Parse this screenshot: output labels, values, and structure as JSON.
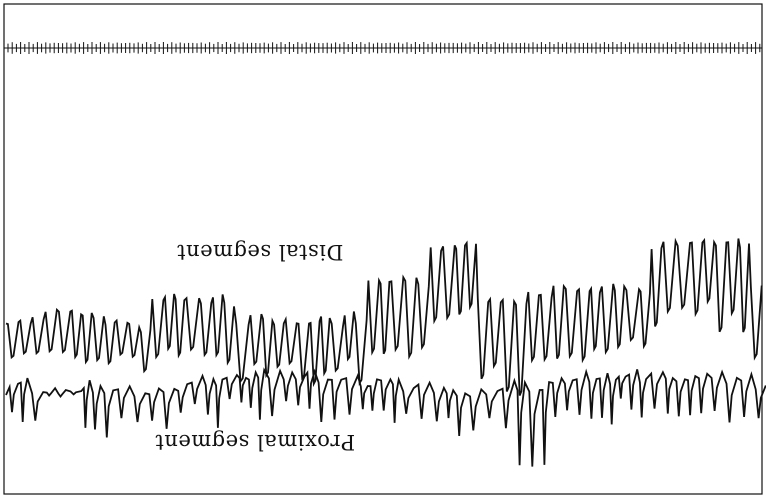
{
  "labels": {
    "distal": "Distal segment",
    "proximal": "Proximal segment"
  },
  "orientation": "upside-down",
  "colors": {
    "ink": "#111111",
    "paper": "#ffffff"
  }
}
